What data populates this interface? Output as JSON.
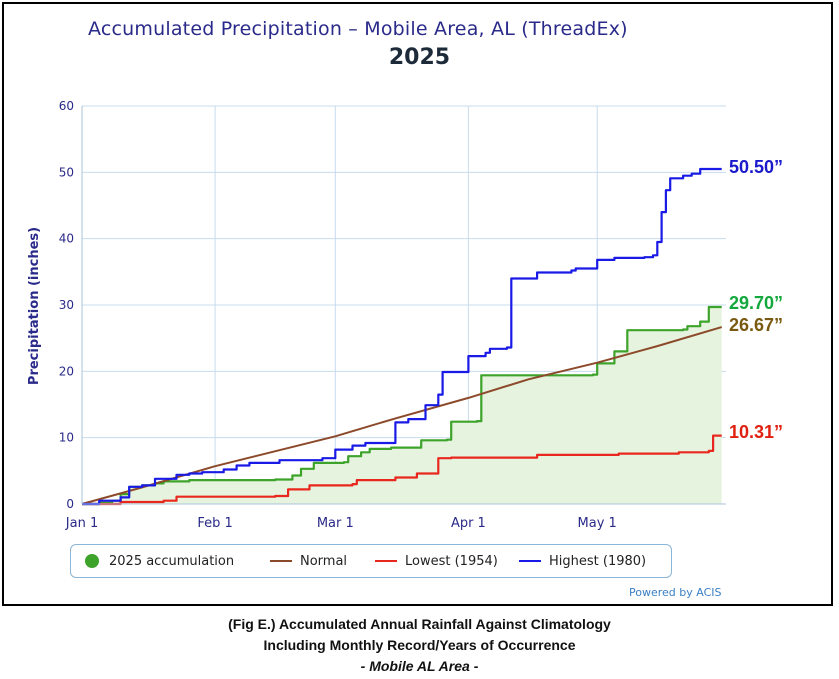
{
  "chart_data": {
    "type": "line",
    "title": "Accumulated Precipitation – Mobile Area, AL (ThreadEx)",
    "subtitle": "2025",
    "ylabel": "Precipitation (inches)",
    "xlabel": "",
    "ylim": [
      0,
      60
    ],
    "yticks": [
      0,
      10,
      20,
      30,
      40,
      50,
      60
    ],
    "xlim": [
      "2025-01-01",
      "2025-05-31"
    ],
    "xticks": [
      {
        "date": "2025-01-01",
        "label": "Jan 1"
      },
      {
        "date": "2025-02-01",
        "label": "Feb 1"
      },
      {
        "date": "2025-03-01",
        "label": "Mar 1"
      },
      {
        "date": "2025-04-01",
        "label": "Apr 1"
      },
      {
        "date": "2025-05-01",
        "label": "May 1"
      }
    ],
    "grid": true,
    "legend_position": "bottom",
    "series": [
      {
        "name": "2025 accumulation",
        "color": "#3da32a",
        "fill": "#e6f3de",
        "style": "step-area",
        "end_label": "29.70”",
        "end_label_color": "#14a83c",
        "points": [
          [
            "2025-01-01",
            0
          ],
          [
            "2025-01-05",
            0.2
          ],
          [
            "2025-01-08",
            0.5
          ],
          [
            "2025-01-10",
            1.5
          ],
          [
            "2025-01-12",
            2.6
          ],
          [
            "2025-01-15",
            2.8
          ],
          [
            "2025-01-18",
            3.1
          ],
          [
            "2025-01-20",
            3.4
          ],
          [
            "2025-01-26",
            3.6
          ],
          [
            "2025-02-10",
            3.6
          ],
          [
            "2025-02-15",
            3.7
          ],
          [
            "2025-02-19",
            4.3
          ],
          [
            "2025-02-21",
            5.3
          ],
          [
            "2025-02-24",
            6.2
          ],
          [
            "2025-03-03",
            6.3
          ],
          [
            "2025-03-04",
            7.2
          ],
          [
            "2025-03-07",
            7.8
          ],
          [
            "2025-03-09",
            8.3
          ],
          [
            "2025-03-14",
            8.5
          ],
          [
            "2025-03-21",
            9.6
          ],
          [
            "2025-03-27",
            9.7
          ],
          [
            "2025-03-28",
            12.4
          ],
          [
            "2025-04-03",
            12.5
          ],
          [
            "2025-04-04",
            19.4
          ],
          [
            "2025-04-30",
            19.5
          ],
          [
            "2025-05-01",
            21.2
          ],
          [
            "2025-05-05",
            23.0
          ],
          [
            "2025-05-08",
            26.2
          ],
          [
            "2025-05-21",
            26.3
          ],
          [
            "2025-05-22",
            26.8
          ],
          [
            "2025-05-25",
            27.5
          ],
          [
            "2025-05-27",
            29.7
          ],
          [
            "2025-05-30",
            29.7
          ]
        ]
      },
      {
        "name": "Normal",
        "color": "#8c4a2a",
        "style": "line",
        "end_label": "26.67”",
        "end_label_color": "#7a5a10",
        "points": [
          [
            "2025-01-01",
            0
          ],
          [
            "2025-01-15",
            2.5
          ],
          [
            "2025-02-01",
            5.7
          ],
          [
            "2025-03-01",
            10.2
          ],
          [
            "2025-03-15",
            12.9
          ],
          [
            "2025-04-01",
            16.0
          ],
          [
            "2025-04-15",
            18.8
          ],
          [
            "2025-05-01",
            21.3
          ],
          [
            "2025-05-15",
            23.8
          ],
          [
            "2025-05-30",
            26.67
          ]
        ]
      },
      {
        "name": "Lowest (1954)",
        "color": "#e8281e",
        "style": "step",
        "end_label": "10.31”",
        "end_label_color": "#e02010",
        "points": [
          [
            "2025-01-01",
            0
          ],
          [
            "2025-01-10",
            0.3
          ],
          [
            "2025-01-20",
            0.5
          ],
          [
            "2025-01-23",
            1.1
          ],
          [
            "2025-02-15",
            1.2
          ],
          [
            "2025-02-18",
            2.2
          ],
          [
            "2025-02-23",
            2.8
          ],
          [
            "2025-03-05",
            3.0
          ],
          [
            "2025-03-06",
            3.6
          ],
          [
            "2025-03-15",
            4.0
          ],
          [
            "2025-03-20",
            4.6
          ],
          [
            "2025-03-25",
            6.9
          ],
          [
            "2025-03-28",
            7.0
          ],
          [
            "2025-04-17",
            7.4
          ],
          [
            "2025-05-06",
            7.6
          ],
          [
            "2025-05-20",
            7.8
          ],
          [
            "2025-05-27",
            8.0
          ],
          [
            "2025-05-28",
            10.31
          ],
          [
            "2025-05-30",
            10.31
          ]
        ]
      },
      {
        "name": "Highest (1980)",
        "color": "#1a1ae6",
        "style": "step",
        "end_label": "50.50”",
        "end_label_color": "#1a1acc",
        "points": [
          [
            "2025-01-01",
            0
          ],
          [
            "2025-01-05",
            0.5
          ],
          [
            "2025-01-10",
            1.0
          ],
          [
            "2025-01-12",
            2.6
          ],
          [
            "2025-01-15",
            2.8
          ],
          [
            "2025-01-18",
            3.8
          ],
          [
            "2025-01-23",
            4.4
          ],
          [
            "2025-01-26",
            4.6
          ],
          [
            "2025-01-29",
            4.8
          ],
          [
            "2025-02-03",
            5.2
          ],
          [
            "2025-02-06",
            5.8
          ],
          [
            "2025-02-09",
            6.2
          ],
          [
            "2025-02-16",
            6.6
          ],
          [
            "2025-02-26",
            6.9
          ],
          [
            "2025-03-01",
            8.2
          ],
          [
            "2025-03-05",
            8.8
          ],
          [
            "2025-03-08",
            9.2
          ],
          [
            "2025-03-15",
            12.3
          ],
          [
            "2025-03-18",
            12.8
          ],
          [
            "2025-03-22",
            14.9
          ],
          [
            "2025-03-25",
            16.5
          ],
          [
            "2025-03-26",
            19.9
          ],
          [
            "2025-04-01",
            22.3
          ],
          [
            "2025-04-05",
            22.8
          ],
          [
            "2025-04-06",
            23.4
          ],
          [
            "2025-04-10",
            23.6
          ],
          [
            "2025-04-11",
            34.0
          ],
          [
            "2025-04-17",
            34.9
          ],
          [
            "2025-04-25",
            35.2
          ],
          [
            "2025-04-26",
            35.5
          ],
          [
            "2025-05-01",
            36.8
          ],
          [
            "2025-05-05",
            37.1
          ],
          [
            "2025-05-12",
            37.2
          ],
          [
            "2025-05-14",
            37.5
          ],
          [
            "2025-05-15",
            39.5
          ],
          [
            "2025-05-16",
            44.0
          ],
          [
            "2025-05-17",
            47.3
          ],
          [
            "2025-05-18",
            49.1
          ],
          [
            "2025-05-21",
            49.5
          ],
          [
            "2025-05-23",
            49.8
          ],
          [
            "2025-05-25",
            50.5
          ],
          [
            "2025-05-30",
            50.5
          ]
        ]
      }
    ]
  },
  "legend": [
    {
      "label": "2025 accumulation",
      "color": "#3da32a",
      "marker": "dot"
    },
    {
      "label": "Normal",
      "color": "#8c4a2a",
      "marker": "line"
    },
    {
      "label": "Lowest (1954)",
      "color": "#e8281e",
      "marker": "line"
    },
    {
      "label": "Highest (1980)",
      "color": "#1a1ae6",
      "marker": "line"
    }
  ],
  "powered_by": "Powered by ACIS",
  "caption": {
    "line1": "(Fig E.) Accumulated Annual Rainfall Against  Climatology",
    "line2": "Including Monthly Record/Years of Occurrence",
    "line3": "- Mobile AL Area -"
  }
}
